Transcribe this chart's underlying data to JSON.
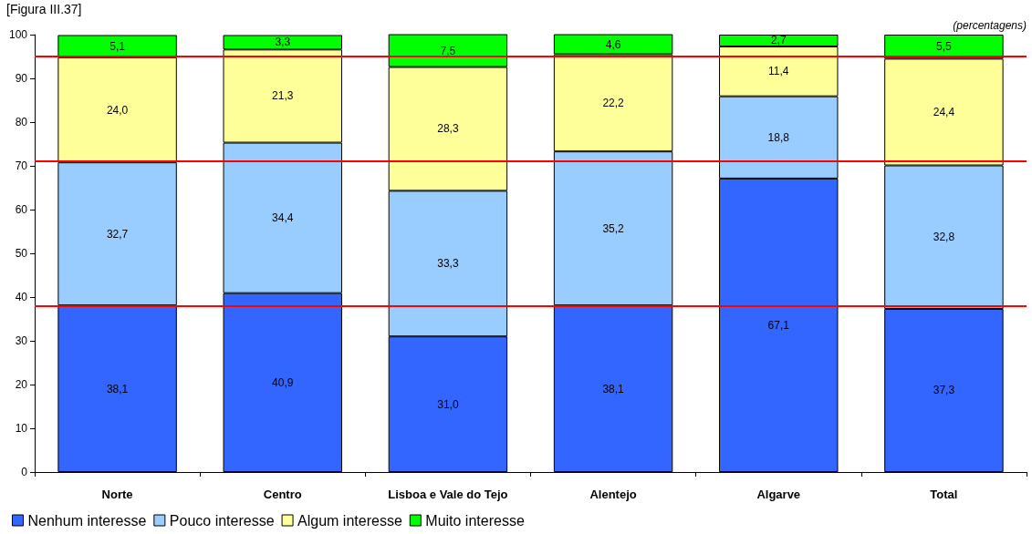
{
  "chart_data": {
    "type": "bar",
    "title": "[Figura III.37]",
    "annotations": [
      "(percentagens)"
    ],
    "categories": [
      "Norte",
      "Centro",
      "Lisboa e Vale do Tejo",
      "Alentejo",
      "Algarve",
      "Total"
    ],
    "stacked": true,
    "series": [
      {
        "name": "Nenhum interesse",
        "color": "#3366ff",
        "values": [
          38.1,
          40.9,
          31.0,
          38.1,
          67.1,
          37.3
        ],
        "value_labels": [
          "38,1",
          "40,9",
          "31,0",
          "38,1",
          "67,1",
          "37,3"
        ]
      },
      {
        "name": "Pouco interesse",
        "color": "#99ccff",
        "values": [
          32.7,
          34.4,
          33.3,
          35.2,
          18.8,
          32.8
        ],
        "value_labels": [
          "32,7",
          "34,4",
          "33,3",
          "35,2",
          "18,8",
          "32,8"
        ]
      },
      {
        "name": "Algum interesse",
        "color": "#ffff99",
        "values": [
          24.0,
          21.3,
          28.3,
          22.2,
          11.4,
          24.4
        ],
        "value_labels": [
          "24,0",
          "21,3",
          "28,3",
          "22,2",
          "11,4",
          "24,4"
        ]
      },
      {
        "name": "Muito interesse",
        "color": "#00ff00",
        "values": [
          5.1,
          3.3,
          7.5,
          4.6,
          2.7,
          5.5
        ],
        "value_labels": [
          "5,1",
          "3,3",
          "7,5",
          "4,6",
          "2,7",
          "5,5"
        ]
      }
    ],
    "ylim": [
      0,
      100
    ],
    "yticks": [
      0,
      10,
      20,
      30,
      40,
      50,
      60,
      70,
      80,
      90,
      100
    ],
    "ref_lines": [
      {
        "axis": "y",
        "value": 95,
        "label": null,
        "color": "#ff0000"
      },
      {
        "axis": "y",
        "value": 71,
        "label": null,
        "color": "#ff0000"
      },
      {
        "axis": "y",
        "value": 38,
        "label": null,
        "color": "#ff0000"
      }
    ],
    "grid": false,
    "legend": "bottom left"
  }
}
